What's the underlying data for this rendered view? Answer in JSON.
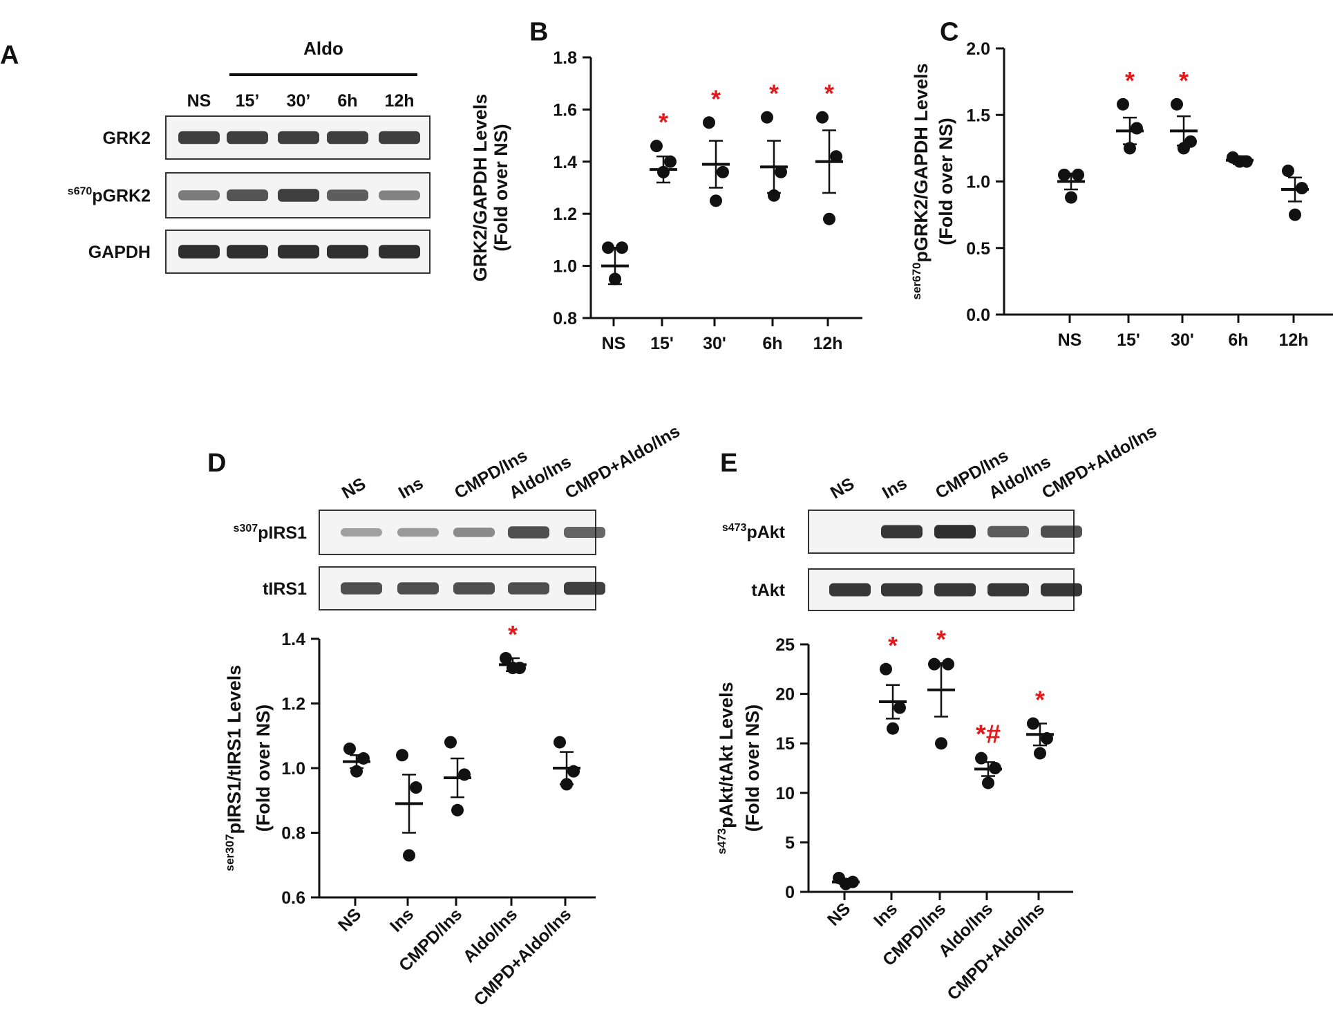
{
  "colors": {
    "ink": "#111111",
    "sig": "#e31a1c",
    "frame": "#333333",
    "band": "#1c1c1c"
  },
  "blots": [
    {
      "id": "blotA",
      "panel_letter": "A",
      "bracket_label": "Aldo",
      "lanes": [
        "NS",
        "15’",
        "30’",
        "6h",
        "12h"
      ],
      "rows": [
        {
          "label": "GRK2",
          "band_strength": [
            0.85,
            0.85,
            0.85,
            0.85,
            0.85
          ]
        },
        {
          "sup": "s670",
          "label": "pGRK2",
          "band_strength": [
            0.45,
            0.7,
            0.85,
            0.65,
            0.4
          ]
        },
        {
          "label": "GAPDH",
          "band_strength": [
            0.95,
            0.95,
            0.95,
            0.95,
            0.95
          ]
        }
      ]
    },
    {
      "id": "blotD",
      "panel_letter": "D",
      "lanes": [
        "NS",
        "Ins",
        "CMPD/Ins",
        "Aldo/Ins",
        "CMPD+Aldo/Ins"
      ],
      "rows": [
        {
          "sup": "s307",
          "label": "pIRS1",
          "band_strength": [
            0.2,
            0.25,
            0.35,
            0.75,
            0.6
          ]
        },
        {
          "label": "tIRS1",
          "band_strength": [
            0.75,
            0.75,
            0.75,
            0.75,
            0.85
          ]
        }
      ]
    },
    {
      "id": "blotE",
      "panel_letter": "E",
      "lanes": [
        "NS",
        "Ins",
        "CMPD/Ins",
        "Aldo/Ins",
        "CMPD+Aldo/Ins"
      ],
      "rows": [
        {
          "sup": "s473",
          "label": "pAkt",
          "band_strength": [
            0.0,
            0.9,
            0.95,
            0.65,
            0.75
          ]
        },
        {
          "label": "tAkt",
          "band_strength": [
            0.9,
            0.9,
            0.9,
            0.9,
            0.9
          ]
        }
      ]
    }
  ],
  "chart_data": [
    {
      "id": "chartB",
      "type": "scatter",
      "panel_letter": "B",
      "title": "",
      "ylabel_line1": "GRK2/GAPDH Levels",
      "ylabel_line2": "(Fold over NS)",
      "categories": [
        "NS",
        "15'",
        "30'",
        "6h",
        "12h"
      ],
      "ylim": [
        0.8,
        1.8
      ],
      "yticks": [
        0.8,
        1.0,
        1.2,
        1.4,
        1.6,
        1.8
      ],
      "tick_labels": [
        "0.8",
        "1.0",
        "1.2",
        "1.4",
        "1.6",
        "1.8"
      ],
      "points": [
        [
          1.07,
          1.07,
          0.95
        ],
        [
          1.46,
          1.4,
          1.36
        ],
        [
          1.55,
          1.36,
          1.25
        ],
        [
          1.57,
          1.36,
          1.27
        ],
        [
          1.57,
          1.42,
          1.18
        ]
      ],
      "mean": [
        1.0,
        1.37,
        1.39,
        1.38,
        1.4
      ],
      "sem": [
        0.07,
        0.05,
        0.09,
        0.1,
        0.12
      ],
      "annotations": [
        "",
        "*",
        "*",
        "*",
        "*"
      ]
    },
    {
      "id": "chartC",
      "type": "scatter",
      "panel_letter": "C",
      "title": "",
      "ylabel_sup": "ser670",
      "ylabel_line1": "pGRK2/GAPDH Levels",
      "ylabel_line2": "(Fold over NS)",
      "categories": [
        "NS",
        "15'",
        "30'",
        "6h",
        "12h"
      ],
      "ylim": [
        0.0,
        2.0
      ],
      "yticks": [
        0.0,
        0.5,
        1.0,
        1.5,
        2.0
      ],
      "tick_labels": [
        "0.0",
        "0.5",
        "1.0",
        "1.5",
        "2.0"
      ],
      "points": [
        [
          1.05,
          1.05,
          0.88
        ],
        [
          1.58,
          1.4,
          1.25
        ],
        [
          1.58,
          1.3,
          1.25
        ],
        [
          1.18,
          1.15,
          1.15
        ],
        [
          1.08,
          0.95,
          0.75
        ]
      ],
      "mean": [
        1.0,
        1.38,
        1.38,
        1.16,
        0.94
      ],
      "sem": [
        0.06,
        0.1,
        0.11,
        0.03,
        0.09
      ],
      "annotations": [
        "",
        "*",
        "*",
        "",
        ""
      ]
    },
    {
      "id": "chartD",
      "type": "scatter",
      "panel_letter": "D",
      "title": "",
      "ylabel_sup": "ser307",
      "ylabel_line1": "pIRS1/tIRS1 Levels",
      "ylabel_line2": "(Fold over NS)",
      "categories": [
        "NS",
        "Ins",
        "CMPD/Ins",
        "Aldo/Ins",
        "CMPD+Aldo/Ins"
      ],
      "ylim": [
        0.6,
        1.4
      ],
      "yticks": [
        0.6,
        0.8,
        1.0,
        1.2,
        1.4
      ],
      "tick_labels": [
        "0.6",
        "0.8",
        "1.0",
        "1.2",
        "1.4"
      ],
      "points": [
        [
          1.06,
          1.03,
          0.99
        ],
        [
          1.04,
          0.94,
          0.73
        ],
        [
          1.08,
          0.98,
          0.87
        ],
        [
          1.34,
          1.31,
          1.31
        ],
        [
          1.08,
          0.99,
          0.95
        ]
      ],
      "mean": [
        1.02,
        0.89,
        0.97,
        1.32,
        1.0
      ],
      "sem": [
        0.02,
        0.09,
        0.06,
        0.02,
        0.05
      ],
      "annotations": [
        "",
        "",
        "",
        "*",
        ""
      ]
    },
    {
      "id": "chartE",
      "type": "scatter",
      "panel_letter": "E",
      "title": "",
      "ylabel_sup": "s473",
      "ylabel_line1": "pAkt/tAkt Levels",
      "ylabel_line2": "(Fold over NS)",
      "categories": [
        "NS",
        "Ins",
        "CMPD/Ins",
        "Aldo/Ins",
        "CMPD+Aldo/Ins"
      ],
      "ylim": [
        0,
        25
      ],
      "yticks": [
        0,
        5,
        10,
        15,
        20,
        25
      ],
      "tick_labels": [
        "0",
        "5",
        "10",
        "15",
        "20",
        "25"
      ],
      "points": [
        [
          1.4,
          1.0,
          0.8
        ],
        [
          22.5,
          18.6,
          16.5
        ],
        [
          23.0,
          23.0,
          15.0
        ],
        [
          13.5,
          12.5,
          11.0
        ],
        [
          17.0,
          15.5,
          14.0
        ]
      ],
      "mean": [
        1.0,
        19.2,
        20.4,
        12.4,
        15.9
      ],
      "sem": [
        0.2,
        1.7,
        2.7,
        0.7,
        1.1
      ],
      "annotations": [
        "",
        "*",
        "*",
        "*#",
        "*"
      ]
    }
  ]
}
